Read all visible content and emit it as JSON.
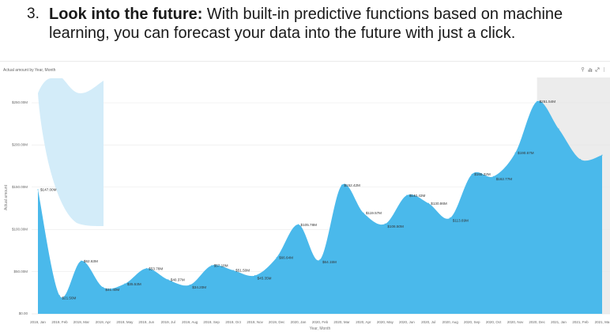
{
  "document": {
    "list_number": "3.",
    "lead": "Look into the future:",
    "line1": "With built-in predictive functions based on machine",
    "line2": "learning, you can forecast your data into the future with just a click."
  },
  "chart_card": {
    "toolbar": [
      {
        "icon": "pin-icon"
      },
      {
        "icon": "bar-chart-icon"
      },
      {
        "icon": "expand-icon"
      },
      {
        "icon": "more-icon"
      }
    ]
  },
  "colors": {
    "area": "#4AB9EB",
    "band": "#D3ECF9",
    "forecast_shade": "#ECECEC",
    "grid": "#E6E6E6",
    "label_text": "#333333"
  },
  "chart_data": {
    "type": "area",
    "title": "Actual amount by Year, Month",
    "xlabel": "Year, Month",
    "ylabel": "Actual amount",
    "categories": [
      "2019, Jan",
      "2019, Feb",
      "2019, Mar",
      "2019, Apr",
      "2019, May",
      "2019, Jun",
      "2019, Jul",
      "2019, Aug",
      "2019, Sep",
      "2019, Oct",
      "2019, Nov",
      "2019, Dec",
      "2020, Jan",
      "2020, Feb",
      "2020, Mar",
      "2020, Apr",
      "2020, May",
      "2020, Jun",
      "2020, Jul",
      "2020, Aug",
      "2020, Sep",
      "2020, Oct",
      "2020, Nov",
      "2020, Dec",
      "2021, Jan",
      "2021, Feb",
      "2021, Ma"
    ],
    "values": [
      147.0,
      21.56,
      62.63,
      31.4,
      35.53,
      53.78,
      40.37,
      34.2,
      57.18,
      51.5,
      45.35,
      66.64,
      105.78,
      64.15,
      152.42,
      119.57,
      106.5,
      140.43,
      130.86,
      113.69,
      165.32,
      162.77,
      190.67,
      251.54,
      219,
      183,
      188
    ],
    "data_labels": [
      "$147.00M",
      "$21.56M",
      "$62.63M",
      "$31.40M",
      "$35.53M",
      "$53.78M",
      "$40.37M",
      "$34.20M",
      "$57.18M",
      "$51.50M",
      "$45.35M",
      "$66.64M",
      "$105.78M",
      "$64.15M",
      "$152.42M",
      "$119.57M",
      "$106.50M",
      "$140.43M",
      "$130.86M",
      "$113.69M",
      "$165.32M",
      "$162.77M",
      "$190.67M",
      "$251.54M",
      "",
      "",
      ""
    ],
    "ylim": [
      0,
      280
    ],
    "yticks": [
      0,
      50,
      100,
      150,
      200,
      250
    ],
    "ytick_labels": [
      "$0.00",
      "$50.00M",
      "$100.00M",
      "$150.00M",
      "$200.00M",
      "$250.00M"
    ],
    "grid": true
  }
}
